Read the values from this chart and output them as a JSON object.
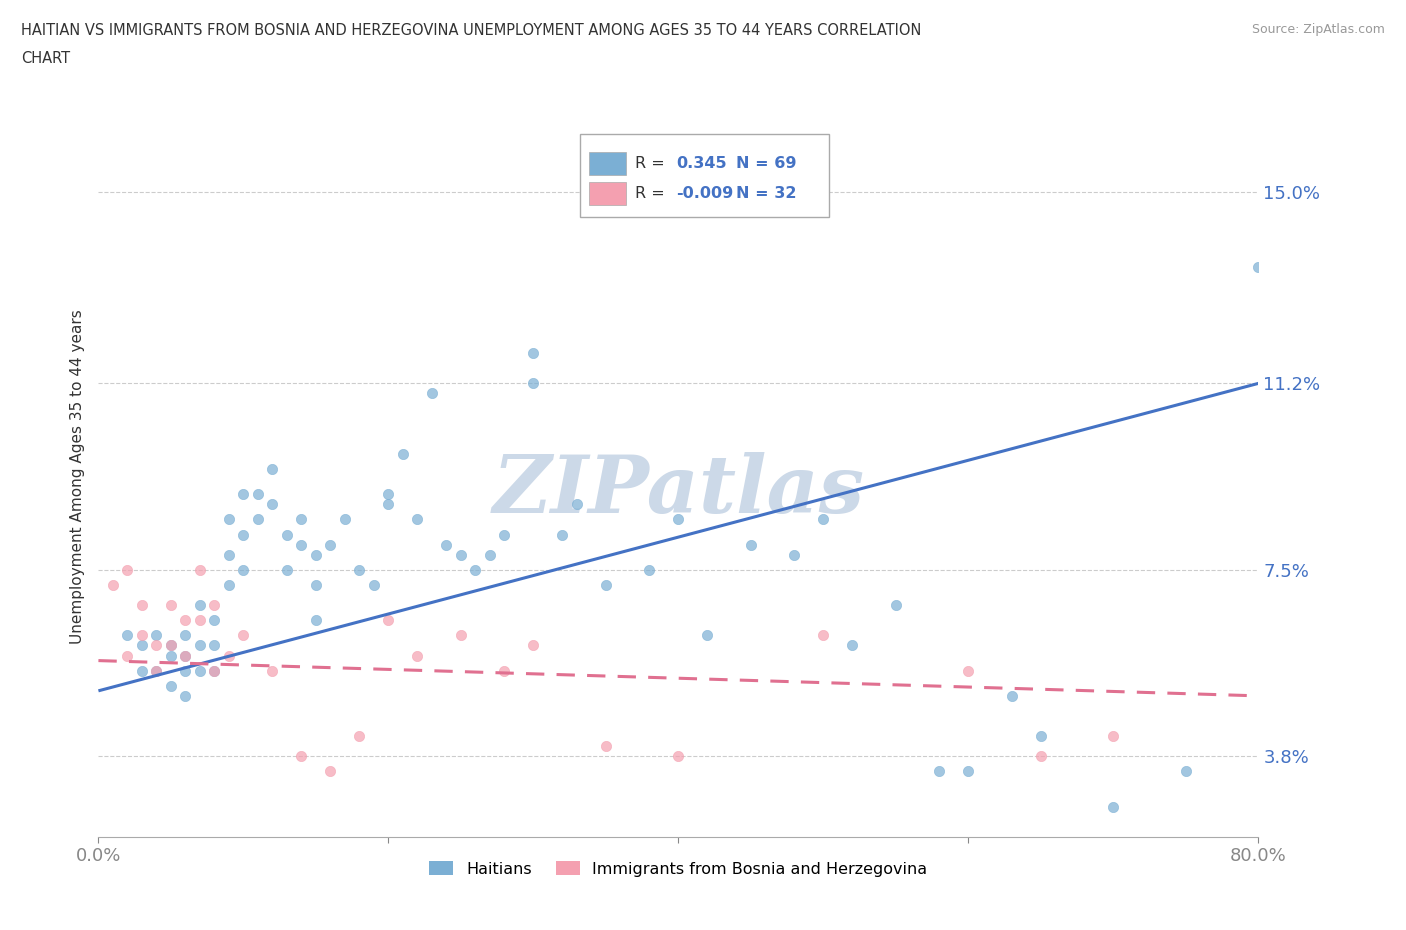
{
  "title_line1": "HAITIAN VS IMMIGRANTS FROM BOSNIA AND HERZEGOVINA UNEMPLOYMENT AMONG AGES 35 TO 44 YEARS CORRELATION",
  "title_line2": "CHART",
  "source": "Source: ZipAtlas.com",
  "ylabel": "Unemployment Among Ages 35 to 44 years",
  "xlim": [
    0.0,
    0.8
  ],
  "ylim": [
    0.022,
    0.165
  ],
  "yticks": [
    0.038,
    0.075,
    0.112,
    0.15
  ],
  "ytick_labels": [
    "3.8%",
    "7.5%",
    "11.2%",
    "15.0%"
  ],
  "xticks": [
    0.0,
    0.2,
    0.4,
    0.6,
    0.8
  ],
  "xtick_labels": [
    "0.0%",
    "",
    "",
    "",
    "80.0%"
  ],
  "grid_color": "#cccccc",
  "background_color": "#ffffff",
  "blue_color": "#7bafd4",
  "pink_color": "#f4a0b0",
  "legend_R1_val": "0.345",
  "legend_N1": "N = 69",
  "legend_R2_val": "-0.009",
  "legend_N2": "N = 32",
  "label1": "Haitians",
  "label2": "Immigrants from Bosnia and Herzegovina",
  "blue_x": [
    0.02,
    0.03,
    0.03,
    0.04,
    0.04,
    0.05,
    0.05,
    0.05,
    0.06,
    0.06,
    0.06,
    0.06,
    0.07,
    0.07,
    0.07,
    0.08,
    0.08,
    0.08,
    0.09,
    0.09,
    0.09,
    0.1,
    0.1,
    0.1,
    0.11,
    0.11,
    0.12,
    0.12,
    0.13,
    0.13,
    0.14,
    0.14,
    0.15,
    0.15,
    0.15,
    0.16,
    0.17,
    0.18,
    0.19,
    0.2,
    0.2,
    0.21,
    0.22,
    0.23,
    0.24,
    0.25,
    0.26,
    0.27,
    0.28,
    0.3,
    0.3,
    0.32,
    0.33,
    0.35,
    0.38,
    0.4,
    0.42,
    0.45,
    0.48,
    0.5,
    0.52,
    0.55,
    0.58,
    0.6,
    0.63,
    0.65,
    0.7,
    0.75,
    0.8
  ],
  "blue_y": [
    0.062,
    0.06,
    0.055,
    0.055,
    0.062,
    0.058,
    0.052,
    0.06,
    0.058,
    0.062,
    0.055,
    0.05,
    0.068,
    0.06,
    0.055,
    0.065,
    0.06,
    0.055,
    0.085,
    0.078,
    0.072,
    0.09,
    0.082,
    0.075,
    0.09,
    0.085,
    0.095,
    0.088,
    0.082,
    0.075,
    0.085,
    0.08,
    0.078,
    0.072,
    0.065,
    0.08,
    0.085,
    0.075,
    0.072,
    0.09,
    0.088,
    0.098,
    0.085,
    0.11,
    0.08,
    0.078,
    0.075,
    0.078,
    0.082,
    0.118,
    0.112,
    0.082,
    0.088,
    0.072,
    0.075,
    0.085,
    0.062,
    0.08,
    0.078,
    0.085,
    0.06,
    0.068,
    0.035,
    0.035,
    0.05,
    0.042,
    0.028,
    0.035,
    0.135
  ],
  "pink_x": [
    0.01,
    0.02,
    0.02,
    0.03,
    0.03,
    0.04,
    0.04,
    0.05,
    0.05,
    0.06,
    0.06,
    0.07,
    0.07,
    0.08,
    0.08,
    0.09,
    0.1,
    0.12,
    0.14,
    0.16,
    0.18,
    0.2,
    0.22,
    0.25,
    0.28,
    0.3,
    0.35,
    0.4,
    0.5,
    0.6,
    0.65,
    0.7
  ],
  "pink_y": [
    0.072,
    0.075,
    0.058,
    0.068,
    0.062,
    0.06,
    0.055,
    0.068,
    0.06,
    0.065,
    0.058,
    0.075,
    0.065,
    0.068,
    0.055,
    0.058,
    0.062,
    0.055,
    0.038,
    0.035,
    0.042,
    0.065,
    0.058,
    0.062,
    0.055,
    0.06,
    0.04,
    0.038,
    0.062,
    0.055,
    0.038,
    0.042
  ],
  "watermark_color": "#ccd9e8",
  "trend_blue_color": "#4472c4",
  "trend_pink_color": "#e07090",
  "trend_blue_x0": 0.0,
  "trend_blue_y0": 0.051,
  "trend_blue_x1": 0.8,
  "trend_blue_y1": 0.112,
  "trend_pink_x0": 0.0,
  "trend_pink_y0": 0.057,
  "trend_pink_x1": 0.8,
  "trend_pink_y1": 0.05
}
